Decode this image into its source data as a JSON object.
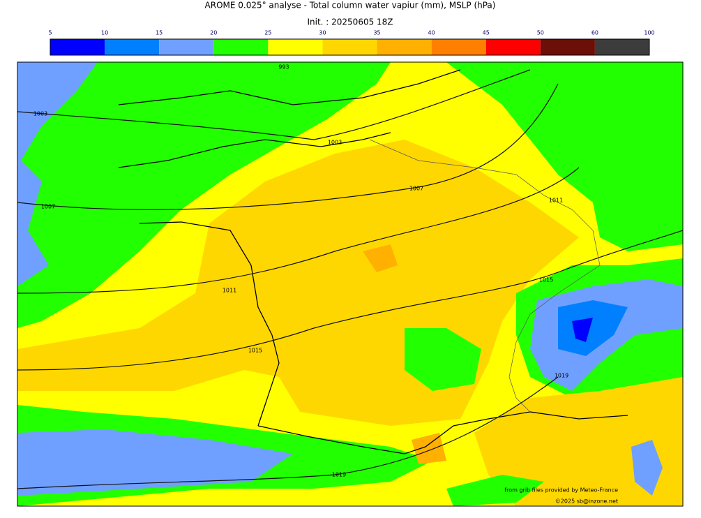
{
  "header": {
    "title": "AROME 0.025° analyse - Total column water vapiur (mm), MSLP (hPa)",
    "init": "Init. : 20250605 18Z"
  },
  "colorbar": {
    "ticks": [
      5,
      10,
      15,
      20,
      25,
      30,
      35,
      40,
      45,
      50,
      60,
      100
    ],
    "colors": [
      "#0000ff",
      "#0080ff",
      "#70a0ff",
      "#22ff00",
      "#ffff00",
      "#ffd700",
      "#ffb000",
      "#ff8000",
      "#ff0000",
      "#6b0f08",
      "#3c3c3c"
    ]
  },
  "map": {
    "isobar_labels": [
      993,
      1003,
      1003,
      1007,
      1007,
      1011,
      1011,
      1015,
      1015,
      1019,
      1019
    ],
    "credit": "from grib files provided by Meteo-France",
    "copyright": "©2025 sb@inzone.net"
  }
}
